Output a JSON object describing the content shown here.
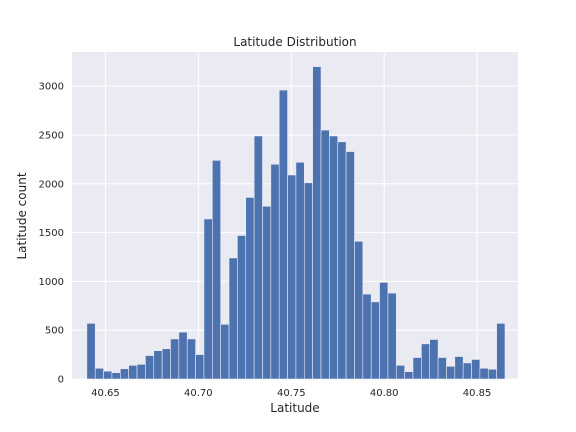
{
  "chart_data": {
    "type": "bar",
    "title": "Latitude Distribution",
    "xlabel": "Latitude",
    "ylabel": "Latitude count",
    "xlim": [
      40.632,
      40.872
    ],
    "ylim": [
      0,
      3350
    ],
    "grid": true,
    "bar_color": "#4c72b0",
    "background_color": "#eaeaf2",
    "grid_color": "#ffffff",
    "bin_start": 40.64,
    "bin_width": 0.0045,
    "values": [
      570,
      110,
      80,
      65,
      105,
      140,
      150,
      240,
      290,
      310,
      410,
      480,
      410,
      250,
      1640,
      2240,
      560,
      1240,
      1470,
      1860,
      2490,
      1770,
      2200,
      2960,
      2090,
      2220,
      2010,
      3200,
      2550,
      2490,
      2430,
      2330,
      1410,
      870,
      790,
      990,
      880,
      140,
      75,
      220,
      360,
      405,
      220,
      130,
      230,
      165,
      200,
      110,
      100,
      570
    ],
    "xticks": [
      40.65,
      40.7,
      40.75,
      40.8,
      40.85
    ],
    "xtick_labels": [
      "40.65",
      "40.70",
      "40.75",
      "40.80",
      "40.85"
    ],
    "yticks": [
      0,
      500,
      1000,
      1500,
      2000,
      2500,
      3000
    ],
    "ytick_labels": [
      "0",
      "500",
      "1000",
      "1500",
      "2000",
      "2500",
      "3000"
    ]
  }
}
